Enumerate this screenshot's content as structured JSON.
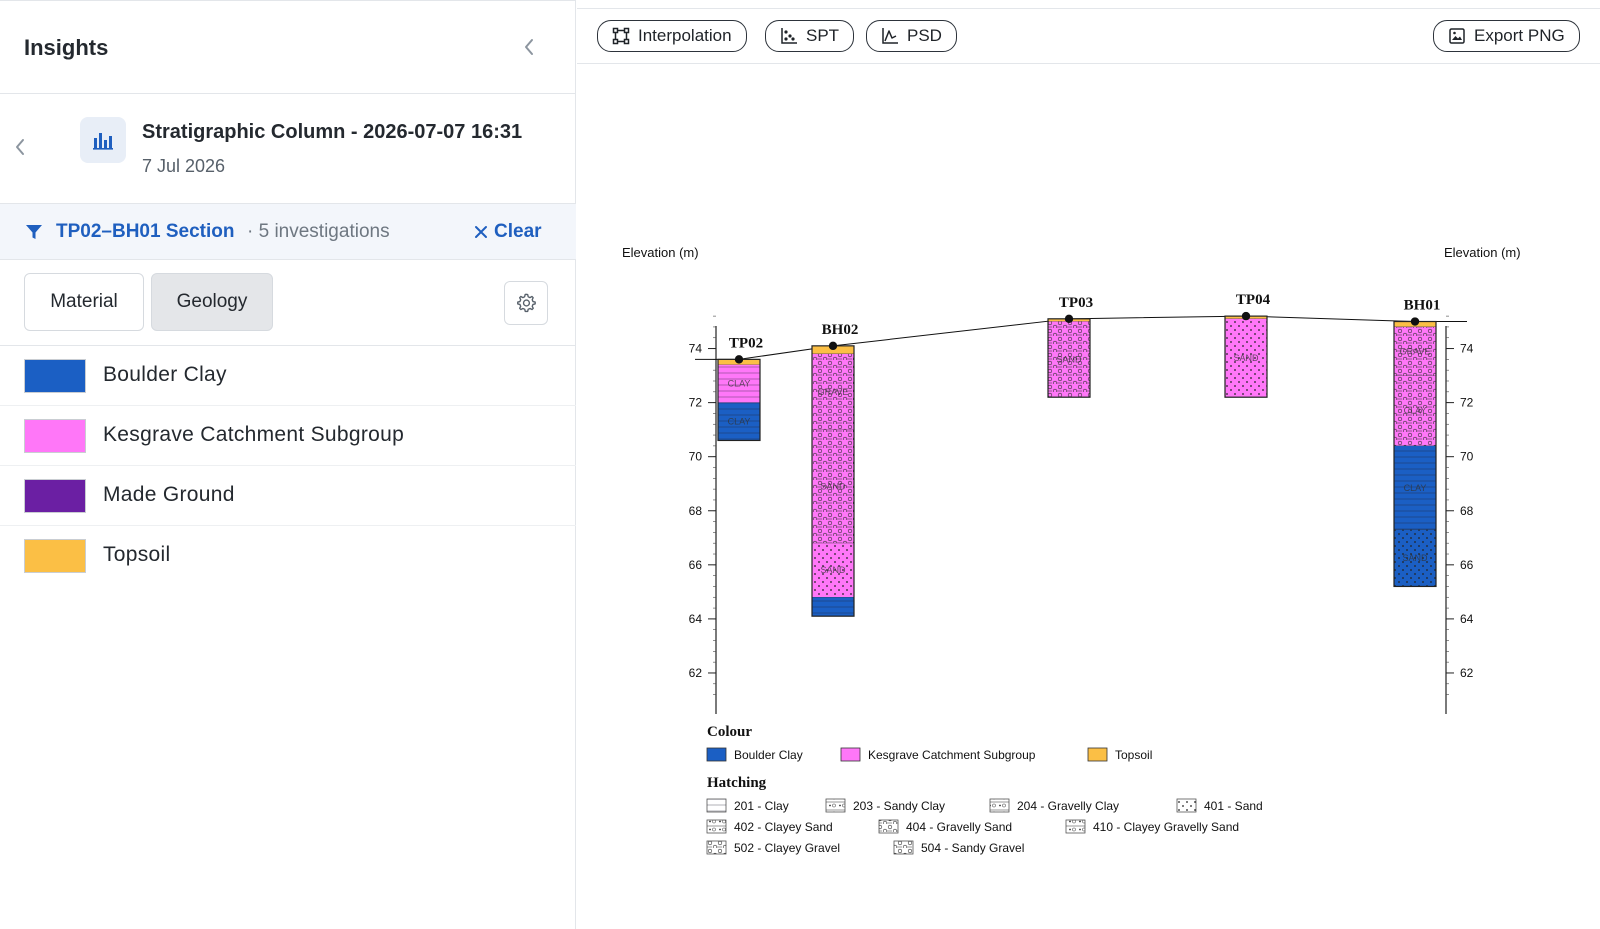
{
  "panel": {
    "title": "Insights"
  },
  "report": {
    "title": "Stratigraphic Column - 2026-07-07 16:31",
    "date": "7 Jul 2026"
  },
  "filter": {
    "name": "TP02–BH01 Section",
    "count": "· 5 investigations",
    "clear_label": "Clear"
  },
  "view_toggle": {
    "material_label": "Material",
    "geology_label": "Geology",
    "active": "Geology"
  },
  "legend": {
    "items": [
      {
        "label": "Boulder Clay",
        "color": "#1b5fc4"
      },
      {
        "label": "Kesgrave Catchment Subgroup",
        "color": "#ff77f8"
      },
      {
        "label": "Made Ground",
        "color": "#6b1fa3"
      },
      {
        "label": "Topsoil",
        "color": "#fbbf45"
      }
    ]
  },
  "toolbar": {
    "interpolation_label": "Interpolation",
    "spt_label": "SPT",
    "psd_label": "PSD",
    "export_label": "Export PNG"
  },
  "chart_data": {
    "type": "stratigraphic-section",
    "ylabel_left": "Elevation (m)",
    "ylabel_right": "Elevation (m)",
    "ylim": [
      61,
      75.5
    ],
    "yticks": [
      62,
      64,
      66,
      68,
      70,
      72,
      74
    ],
    "colors": {
      "Boulder Clay": "#1b5fc4",
      "Kesgrave Catchment Subgroup": "#ff77f8",
      "Topsoil": "#fbbf45"
    },
    "columns": [
      {
        "name": "TP02",
        "ground": 73.6,
        "layers": [
          {
            "top": 73.6,
            "bottom": 73.4,
            "unit": "Topsoil",
            "hatch": "none",
            "label": ""
          },
          {
            "top": 73.4,
            "bottom": 72.0,
            "unit": "Kesgrave Catchment Subgroup",
            "hatch": "clay",
            "label": "CLAY"
          },
          {
            "top": 72.0,
            "bottom": 70.6,
            "unit": "Boulder Clay",
            "hatch": "clay",
            "label": "CLAY"
          }
        ]
      },
      {
        "name": "BH02",
        "ground": 74.1,
        "layers": [
          {
            "top": 74.1,
            "bottom": 73.8,
            "unit": "Topsoil",
            "hatch": "none",
            "label": ""
          },
          {
            "top": 73.8,
            "bottom": 71.0,
            "unit": "Kesgrave Catchment Subgroup",
            "hatch": "gravel",
            "label": "GRAVE"
          },
          {
            "top": 71.0,
            "bottom": 66.8,
            "unit": "Kesgrave Catchment Subgroup",
            "hatch": "gravel",
            "label": "SAND"
          },
          {
            "top": 66.8,
            "bottom": 64.8,
            "unit": "Kesgrave Catchment Subgroup",
            "hatch": "sand",
            "label": "SAND"
          },
          {
            "top": 64.8,
            "bottom": 64.1,
            "unit": "Boulder Clay",
            "hatch": "clay",
            "label": ""
          }
        ]
      },
      {
        "name": "TP03",
        "ground": 75.1,
        "layers": [
          {
            "top": 75.1,
            "bottom": 75.0,
            "unit": "Topsoil",
            "hatch": "none",
            "label": ""
          },
          {
            "top": 75.0,
            "bottom": 72.2,
            "unit": "Kesgrave Catchment Subgroup",
            "hatch": "gravel",
            "label": "SAND"
          }
        ]
      },
      {
        "name": "TP04",
        "ground": 75.2,
        "layers": [
          {
            "top": 75.2,
            "bottom": 75.1,
            "unit": "Topsoil",
            "hatch": "none",
            "label": ""
          },
          {
            "top": 75.1,
            "bottom": 72.2,
            "unit": "Kesgrave Catchment Subgroup",
            "hatch": "sand",
            "label": "SAND"
          }
        ]
      },
      {
        "name": "BH01",
        "ground": 75.0,
        "layers": [
          {
            "top": 75.0,
            "bottom": 74.8,
            "unit": "Topsoil",
            "hatch": "none",
            "label": ""
          },
          {
            "top": 74.8,
            "bottom": 73.0,
            "unit": "Kesgrave Catchment Subgroup",
            "hatch": "gravel",
            "label": "GRAVE"
          },
          {
            "top": 73.0,
            "bottom": 70.4,
            "unit": "Kesgrave Catchment Subgroup",
            "hatch": "gravel",
            "label": "CLAY"
          },
          {
            "top": 70.4,
            "bottom": 67.3,
            "unit": "Boulder Clay",
            "hatch": "clay",
            "label": "CLAY"
          },
          {
            "top": 67.3,
            "bottom": 65.2,
            "unit": "Boulder Clay",
            "hatch": "sand",
            "label": "SAND"
          }
        ]
      }
    ],
    "legend_colour_title": "Colour",
    "legend_colour": [
      {
        "label": "Boulder Clay",
        "color": "#1b5fc4"
      },
      {
        "label": "Kesgrave Catchment Subgroup",
        "color": "#ff77f8"
      },
      {
        "label": "Topsoil",
        "color": "#fbbf45"
      }
    ],
    "legend_hatch_title": "Hatching",
    "legend_hatch": [
      {
        "label": "201 - Clay",
        "hatch": "clay"
      },
      {
        "label": "203 - Sandy Clay",
        "hatch": "sandyclay"
      },
      {
        "label": "204 - Gravelly Clay",
        "hatch": "gravellyclay"
      },
      {
        "label": "401 - Sand",
        "hatch": "sand"
      },
      {
        "label": "402 - Clayey Sand",
        "hatch": "clayeysand"
      },
      {
        "label": "404 - Gravelly Sand",
        "hatch": "gravellysand"
      },
      {
        "label": "410 - Clayey Gravelly Sand",
        "hatch": "clayeygravellysand"
      },
      {
        "label": "502 - Clayey Gravel",
        "hatch": "clayeygravel"
      },
      {
        "label": "504 - Sandy Gravel",
        "hatch": "sandygravel"
      }
    ]
  }
}
